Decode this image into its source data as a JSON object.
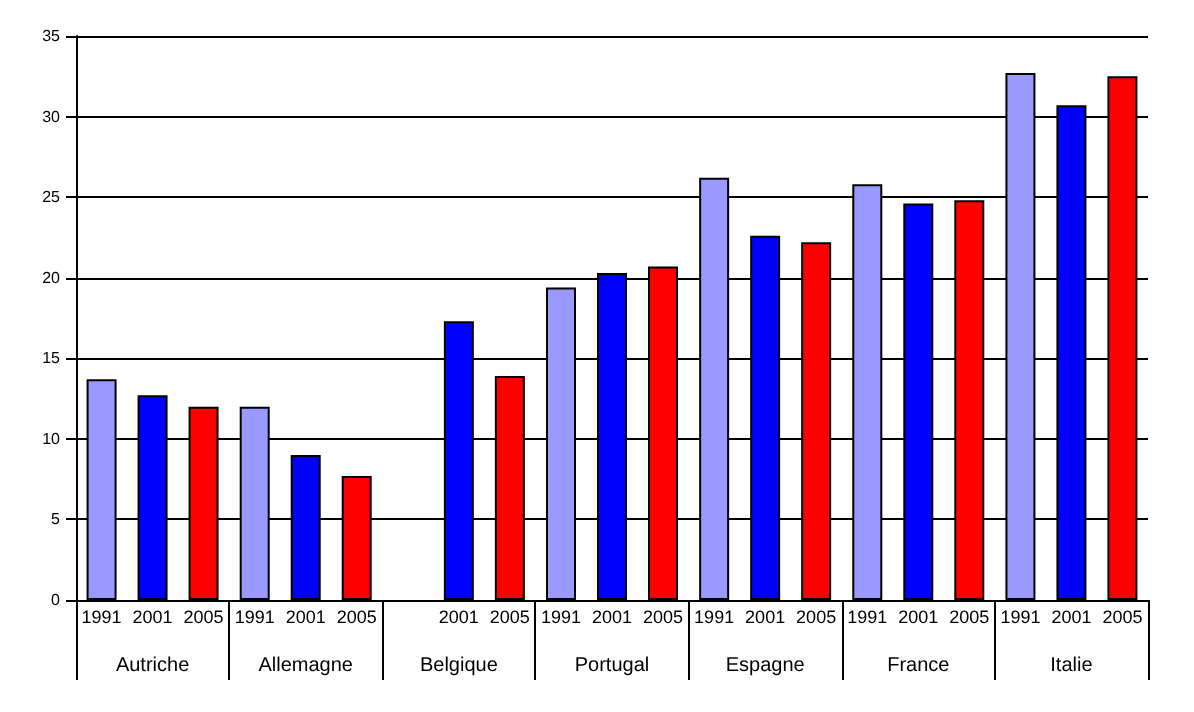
{
  "chart_data": {
    "type": "bar",
    "categories": [
      "Autriche",
      "Allemagne",
      "Belgique",
      "Portugal",
      "Espagne",
      "France",
      "Italie"
    ],
    "series": [
      {
        "name": "1991",
        "color": "#9999ff",
        "values": [
          13.7,
          12.0,
          null,
          19.4,
          26.2,
          25.8,
          32.7
        ]
      },
      {
        "name": "2001",
        "color": "#0000ff",
        "values": [
          12.7,
          9.0,
          17.3,
          20.3,
          22.6,
          24.6,
          30.7
        ]
      },
      {
        "name": "2005",
        "color": "#ff0000",
        "values": [
          12.0,
          7.7,
          13.9,
          20.7,
          22.2,
          24.8,
          32.5
        ]
      }
    ],
    "ylim": [
      0,
      35
    ],
    "yticks": [
      0,
      5,
      10,
      15,
      20,
      25,
      30,
      35
    ],
    "grid": "y"
  }
}
